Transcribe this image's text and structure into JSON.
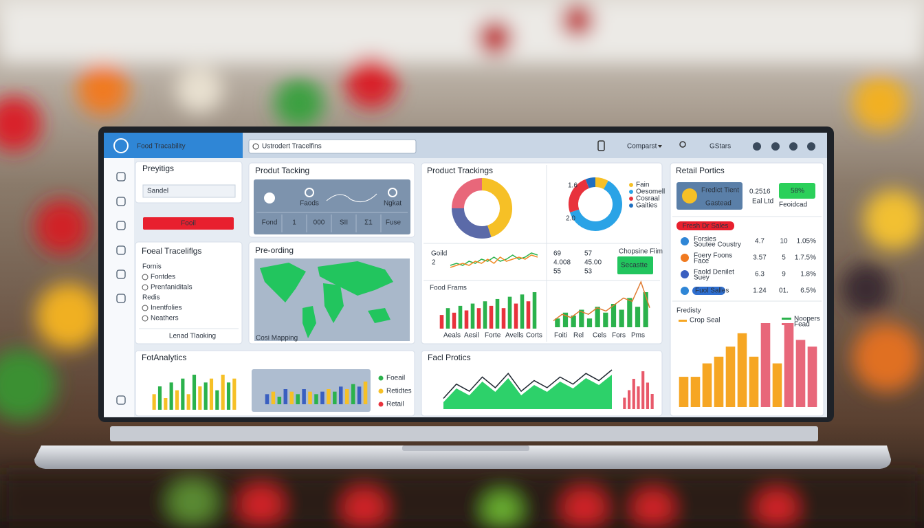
{
  "header": {
    "logo": "Food Tracability",
    "search": "Ustrodert Tracelfins",
    "menu": "Comparst",
    "user": "GStars"
  },
  "preferences": {
    "title": "Preyitigs",
    "input": "Sandel",
    "button": "Fooil"
  },
  "traceability": {
    "title": "Foeal Traceliflgs",
    "group1": "Fornis",
    "items1": [
      "Fontdes",
      "Prenfaniditals"
    ],
    "group2": "Redis",
    "items2": [
      "Inentfolies",
      "Neathers"
    ],
    "link": "Lenad Tlaoking"
  },
  "product_tacking": {
    "title": "Produt Tacking",
    "labels": [
      "Faods",
      "Ngkat"
    ],
    "cells": [
      "Fond",
      "1",
      "000",
      "SII",
      "Σ1",
      "Fuse"
    ]
  },
  "pre_ording": {
    "title": "Pre-ording",
    "caption": "Cosi Mapping"
  },
  "product_trackings": {
    "title": "Product Trackings",
    "donut1": {
      "values": [
        45,
        30,
        25
      ],
      "colors": [
        "#f6c026",
        "#5b6aa8",
        "#e8677a"
      ]
    },
    "donut2": {
      "labels": [
        "Fain",
        "Oesomell",
        "Cosraal",
        "Gaities"
      ],
      "values": [
        8,
        62,
        24,
        6
      ],
      "colors": [
        "#f6c026",
        "#2aa3e6",
        "#e8323c",
        "#1f6fc0"
      ],
      "axis_labels": [
        "1.6",
        "2.0"
      ]
    },
    "line_chart": {
      "title": "Goild",
      "label": "2",
      "series": [
        {
          "color": "#2bb24c",
          "values": [
            3,
            4,
            3,
            5,
            4,
            6,
            5,
            7,
            5,
            6,
            8,
            6,
            7,
            9,
            8
          ]
        },
        {
          "color": "#f08a24",
          "values": [
            2,
            3,
            4,
            3,
            5,
            4,
            6,
            4,
            7,
            5,
            6,
            7,
            6,
            8,
            7
          ]
        }
      ]
    },
    "stats": {
      "rows": [
        [
          "69",
          "57"
        ],
        [
          "4.008",
          "45.00"
        ],
        [
          "55",
          "53"
        ]
      ],
      "note_title": "Chopsine Fiim",
      "note": "Secastte"
    },
    "bar_chart": {
      "title": "Food Frams",
      "values": [
        6,
        9,
        7,
        10,
        8,
        11,
        9,
        12,
        10,
        13,
        9,
        14,
        11,
        15,
        12,
        16
      ],
      "colors": [
        "#e8323c",
        "#2bb24c"
      ],
      "labels": [
        "Aeals",
        "Aesil",
        "Forte",
        "Avells",
        "Corts"
      ]
    },
    "combo_chart": {
      "bars": [
        3,
        5,
        4,
        6,
        3,
        7,
        5,
        8,
        6,
        10,
        7,
        12
      ],
      "line": [
        2,
        4,
        3,
        5,
        4,
        6,
        5,
        7,
        9,
        8,
        14,
        6
      ],
      "bar_color": "#2bb24c",
      "line_color": "#e07a30",
      "labels": [
        "Foiti",
        "Rel",
        "Cels",
        "Fors",
        "Pms"
      ]
    }
  },
  "retail": {
    "title": "Retail Portics",
    "box_title": "Fredict Tient",
    "box_sub": "Gastead",
    "value": "0.2516",
    "value_sub": "Eal Ltd",
    "badge": "58%",
    "badge_sub": "Feoidcad",
    "alert": "Fresh Dr Sales",
    "rows": [
      {
        "name": "Forsies",
        "sub": "Soutee Coustry",
        "value": "4.7",
        "count": "10",
        "pct": "1.05%",
        "color": "#2bb24c"
      },
      {
        "name": "Foery Foons",
        "sub": "Face",
        "value": "3.57",
        "count": "5",
        "pct": "1.7.5%",
        "color": "#e8323c"
      },
      {
        "name": "Faold Denilet",
        "sub": "Suey",
        "value": "6.3",
        "count": "9",
        "pct": "1.8%",
        "color": "#e8323c"
      },
      {
        "name": "Fuol Salles",
        "value": "1.24",
        "count": "01.",
        "pct": "6.5%",
        "color": "#e8323c"
      }
    ],
    "chart": {
      "title": "Fredisty",
      "legend": [
        "Crop Seal",
        "Noopers",
        "Fead"
      ],
      "legend_colors": [
        "#f6a623",
        "#2bb24c",
        "#e8677a"
      ],
      "values": [
        9,
        9,
        13,
        15,
        18,
        22,
        15,
        25,
        13,
        25,
        20,
        18
      ],
      "colors": [
        "#f6a623",
        "#f6a623",
        "#f6a623",
        "#f6a623",
        "#f6a623",
        "#f6a623",
        "#f6a623",
        "#e8677a",
        "#f6a623",
        "#e8677a",
        "#e8677a",
        "#e8677a"
      ]
    }
  },
  "analytics": {
    "title": "FotAnalytics",
    "chart1": {
      "values": [
        4,
        6,
        3,
        7,
        5,
        8,
        4,
        9,
        6,
        7,
        8,
        5,
        9,
        7,
        8
      ],
      "colors": [
        "#f6c026",
        "#2bb24c"
      ]
    },
    "chart2": {
      "values": [
        4,
        5,
        3,
        6,
        5,
        4,
        6,
        5,
        4,
        5,
        6,
        5,
        7,
        6,
        8,
        7,
        9
      ],
      "colors": [
        "#3a5fc0",
        "#f6c026",
        "#2bb24c"
      ]
    },
    "legend": [
      "Foeail",
      "Retidtes",
      "Retail"
    ],
    "legend_colors": [
      "#2bb24c",
      "#f6c026",
      "#e8323c"
    ]
  },
  "fact_profits": {
    "title": "Facl Protics",
    "area": [
      2,
      6,
      4,
      8,
      5,
      9,
      4,
      7,
      5,
      8,
      6,
      9,
      7,
      10
    ],
    "line": [
      3,
      7,
      5,
      9,
      6,
      10,
      5,
      8,
      6,
      9,
      7,
      10,
      8,
      11
    ],
    "small_bars": [
      3,
      5,
      8,
      6,
      10,
      7,
      4
    ],
    "area_color": "#2dd16a",
    "bar_color": "#e8596a"
  }
}
